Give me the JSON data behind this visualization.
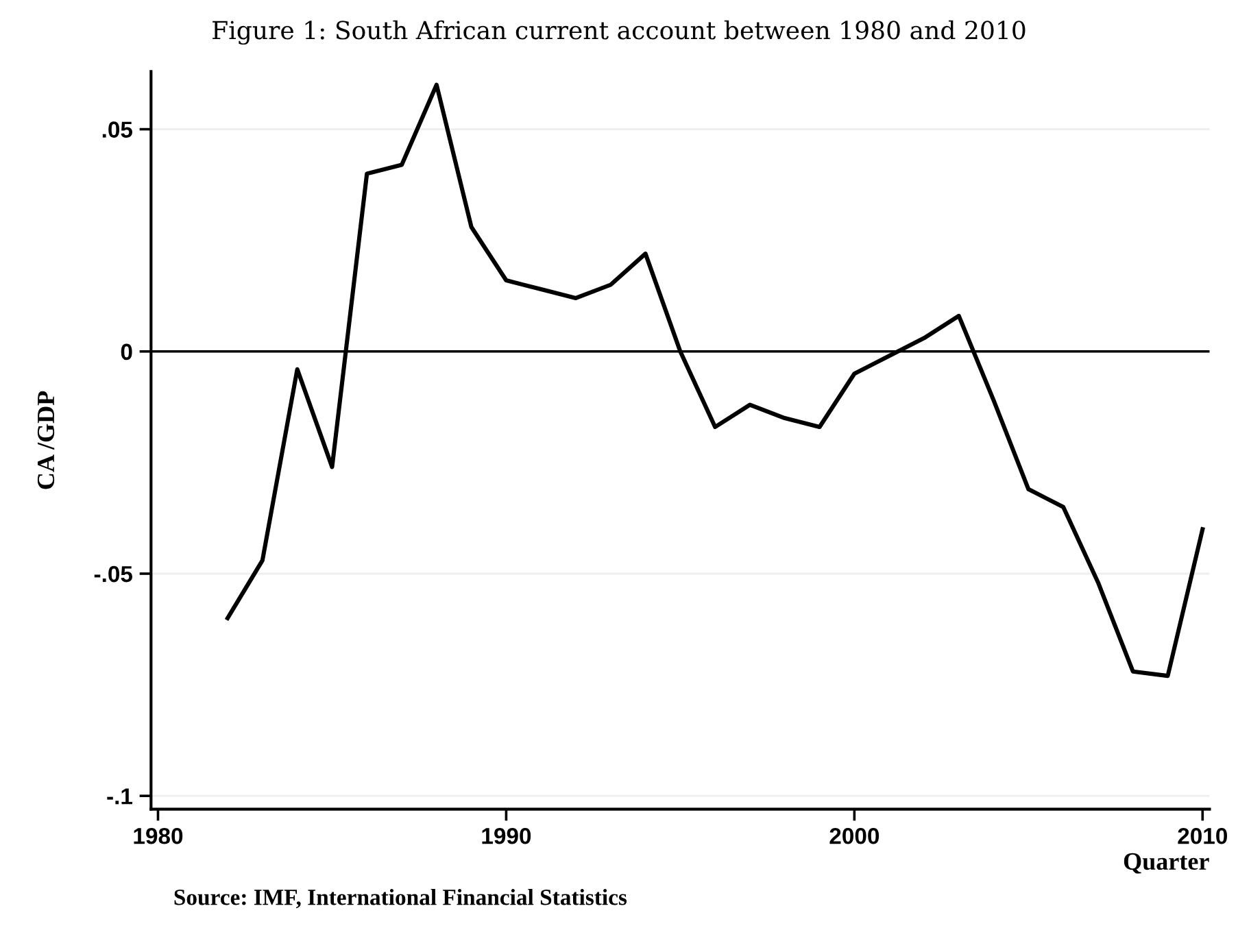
{
  "chart_data": {
    "type": "line",
    "title": "Figure 1: South African current account between 1980 and 2010",
    "xlabel": "Quarter",
    "ylabel": "CA /GDP",
    "annotations": [
      "Source: IMF, International Financial Statistics"
    ],
    "x": [
      1982,
      1983,
      1984,
      1985,
      1986,
      1987,
      1988,
      1989,
      1990,
      1991,
      1992,
      1993,
      1994,
      1995,
      1996,
      1997,
      1998,
      1999,
      2000,
      2001,
      2002,
      2003,
      2004,
      2005,
      2006,
      2007,
      2008,
      2009,
      2010
    ],
    "series": [
      {
        "color": "#000000",
        "values": [
          -0.06,
          -0.047,
          -0.004,
          -0.026,
          0.04,
          0.042,
          0.06,
          0.028,
          0.016,
          0.014,
          0.012,
          0.015,
          0.022,
          0.0,
          -0.017,
          -0.012,
          -0.015,
          -0.017,
          -0.005,
          -0.001,
          0.003,
          0.008,
          -0.011,
          -0.031,
          -0.035,
          -0.052,
          -0.072,
          -0.073,
          -0.04
        ]
      }
    ],
    "xlim": [
      1979.8,
      2010.2
    ],
    "xticks": [
      1980,
      1990,
      2000,
      2010
    ],
    "ylim": [
      -0.103,
      0.063
    ],
    "yticks": [
      {
        "value": -0.1,
        "label": "-.1"
      },
      {
        "value": -0.05,
        "label": "-.05"
      },
      {
        "value": 0,
        "label": "0"
      },
      {
        "value": 0.05,
        "label": ".05"
      }
    ],
    "ref_lines": [
      {
        "axis": "y",
        "value": 0,
        "color": "#000000"
      }
    ],
    "grid": "y",
    "legend": false,
    "marker": "none",
    "line_style": "solid"
  }
}
